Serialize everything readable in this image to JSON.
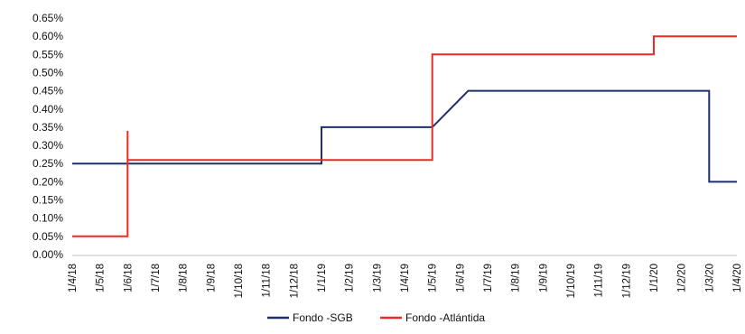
{
  "chart_data": {
    "type": "line",
    "step": true,
    "categories": [
      "1/4/18",
      "1/5/18",
      "1/6/18",
      "1/7/18",
      "1/8/18",
      "1/9/18",
      "1/10/18",
      "1/11/18",
      "1/12/18",
      "1/1/19",
      "1/2/19",
      "1/3/19",
      "1/4/19",
      "1/5/19",
      "1/6/19",
      "1/7/19",
      "1/8/19",
      "1/9/19",
      "1/10/19",
      "1/11/19",
      "1/12/19",
      "1/1/20",
      "1/2/20",
      "1/3/20",
      "1/4/20"
    ],
    "y_ticks": [
      "0.00%",
      "0.05%",
      "0.10%",
      "0.15%",
      "0.20%",
      "0.25%",
      "0.30%",
      "0.35%",
      "0.40%",
      "0.45%",
      "0.50%",
      "0.55%",
      "0.60%",
      "0.65%"
    ],
    "ylim": [
      0,
      0.65
    ],
    "y_unit": "%",
    "grid": false,
    "legend_position": "bottom",
    "series": [
      {
        "name": "Fondo -SGB",
        "color": "#1f2f6b",
        "points": [
          {
            "x": 0,
            "y": 0.25
          },
          {
            "x": 9,
            "y": 0.25
          },
          {
            "x": 9,
            "y": 0.35
          },
          {
            "x": 13,
            "y": 0.35
          },
          {
            "x": 14.3,
            "y": 0.45
          },
          {
            "x": 22.6,
            "y": 0.45
          },
          {
            "x": 22.6,
            "y": 0.45
          },
          {
            "x": 23,
            "y": 0.45
          },
          {
            "x": 23,
            "y": 0.2
          },
          {
            "x": 24,
            "y": 0.2
          }
        ]
      },
      {
        "name": "Fondo -Atlántida",
        "color": "#ee2a24",
        "points": [
          {
            "x": 0,
            "y": 0.05
          },
          {
            "x": 2,
            "y": 0.05
          },
          {
            "x": 2,
            "y": 0.34
          },
          {
            "x": 2,
            "y": 0.26
          },
          {
            "x": 13,
            "y": 0.26
          },
          {
            "x": 13,
            "y": 0.55
          },
          {
            "x": 21,
            "y": 0.55
          },
          {
            "x": 21,
            "y": 0.6
          },
          {
            "x": 24,
            "y": 0.6
          }
        ]
      }
    ]
  }
}
